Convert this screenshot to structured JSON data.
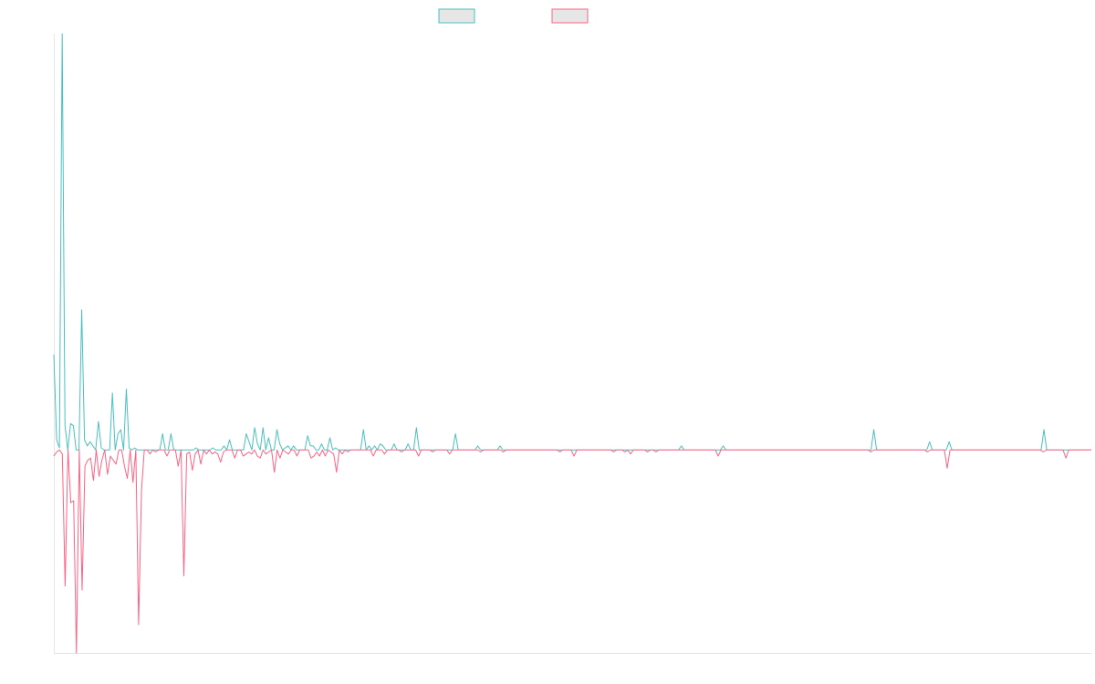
{
  "chart_data": {
    "type": "line",
    "title": "",
    "xlabel": "",
    "ylabel": "",
    "grid": false,
    "legend": {
      "placement": "top-center",
      "show_labels": false
    },
    "colors": {
      "series_a": "#4bc0c0",
      "series_b": "#ff6384",
      "axis": "#e6e6e6",
      "legend_fill": "#e6e6e6"
    },
    "ylim": [
      -100,
      205
    ],
    "series": [
      {
        "color": "#4bc0c0",
        "values": [
          47,
          5,
          1,
          205,
          12,
          0,
          13,
          12,
          0,
          0,
          69,
          5,
          2,
          4,
          2,
          0,
          14,
          1,
          0,
          0,
          0,
          28,
          0,
          8,
          10,
          0,
          30,
          1,
          0,
          1,
          0,
          0,
          0,
          0,
          0,
          0,
          0,
          0,
          0,
          8,
          0,
          0,
          8,
          0,
          0,
          0,
          0,
          0,
          0,
          0,
          0,
          1,
          0,
          0,
          0,
          0,
          0,
          1,
          0,
          0,
          0,
          2,
          0,
          5,
          0,
          0,
          0,
          0,
          0,
          8,
          4,
          0,
          11,
          3,
          0,
          11,
          0,
          6,
          0,
          0,
          10,
          3,
          0,
          1,
          2,
          0,
          2,
          0,
          0,
          0,
          0,
          7,
          2,
          2,
          0,
          0,
          3,
          0,
          0,
          6,
          0,
          1,
          0,
          0,
          0,
          0,
          0,
          0,
          0,
          0,
          0,
          10,
          0,
          2,
          0,
          2,
          0,
          3,
          2,
          0,
          0,
          0,
          3,
          0,
          0,
          0,
          0,
          3,
          0,
          0,
          11,
          0,
          0,
          0,
          0,
          0,
          0,
          0,
          0,
          0,
          0,
          0,
          0,
          0,
          8,
          0,
          0,
          0,
          0,
          0,
          0,
          0,
          2,
          0,
          0,
          0,
          0,
          0,
          0,
          0,
          2,
          0,
          0,
          0,
          0,
          0,
          0,
          0,
          0,
          0,
          0,
          0,
          0,
          0,
          0,
          0,
          0,
          0,
          0,
          0,
          0,
          0,
          0,
          0,
          0,
          0,
          0,
          0,
          0,
          0,
          0,
          0,
          0,
          0,
          0,
          0,
          0,
          0,
          0,
          0,
          0,
          0,
          0,
          0,
          0,
          0,
          0,
          0,
          0,
          0,
          0,
          0,
          0,
          0,
          0,
          0,
          0,
          0,
          0,
          0,
          0,
          0,
          0,
          0,
          0,
          2,
          0,
          0,
          0,
          0,
          0,
          0,
          0,
          0,
          0,
          0,
          0,
          0,
          0,
          0,
          2,
          0,
          0,
          0,
          0,
          0,
          0,
          0,
          0,
          0,
          0,
          0,
          0,
          0,
          0,
          0,
          0,
          0,
          0,
          0,
          0,
          0,
          0,
          0,
          0,
          0,
          0,
          0,
          0,
          0,
          0,
          0,
          0,
          0,
          0,
          0,
          0,
          0,
          0,
          0,
          0,
          0,
          0,
          0,
          0,
          0,
          0,
          0,
          0,
          0,
          0,
          0,
          0,
          0,
          10,
          0,
          0,
          0,
          0,
          0,
          0,
          0,
          0,
          0,
          0,
          0,
          0,
          0,
          0,
          0,
          0,
          0,
          0,
          0,
          4,
          0,
          0,
          0,
          0,
          0,
          0,
          4,
          0,
          0,
          0,
          0,
          0,
          0,
          0,
          0,
          0,
          0,
          0,
          0,
          0,
          0,
          0,
          0,
          0,
          0,
          0,
          0,
          0,
          0,
          0,
          0,
          0,
          0,
          0,
          0,
          0,
          0,
          0,
          0,
          0,
          10,
          0,
          0,
          0,
          0,
          0,
          0,
          0,
          0,
          0,
          0,
          0,
          0,
          0,
          0,
          0,
          0,
          0
        ]
      },
      {
        "color": "#ff6384",
        "values": [
          -3,
          -1,
          0,
          -2,
          -67,
          0,
          -26,
          -25,
          -100,
          0,
          -69,
          -8,
          -5,
          -4,
          -15,
          0,
          -13,
          -5,
          0,
          -12,
          -3,
          -5,
          -7,
          0,
          0,
          -8,
          -14,
          0,
          -16,
          0,
          -86,
          -20,
          0,
          0,
          -2,
          0,
          -1,
          0,
          0,
          0,
          -3,
          0,
          0,
          0,
          -8,
          0,
          -62,
          -2,
          -1,
          -10,
          -2,
          0,
          -7,
          0,
          -2,
          0,
          -2,
          -1,
          -2,
          -6,
          -1,
          0,
          0,
          0,
          -4,
          0,
          0,
          -3,
          -2,
          -1,
          -2,
          0,
          -3,
          -4,
          0,
          -2,
          -1,
          0,
          -11,
          0,
          -4,
          0,
          -1,
          -2,
          0,
          0,
          -3,
          0,
          0,
          0,
          0,
          -4,
          -3,
          -1,
          -3,
          0,
          -3,
          0,
          -1,
          -2,
          -11,
          0,
          -2,
          0,
          -1,
          0,
          0,
          0,
          0,
          0,
          0,
          0,
          0,
          -3,
          0,
          0,
          0,
          -2,
          0,
          0,
          0,
          0,
          0,
          -1,
          0,
          0,
          0,
          0,
          0,
          -3,
          0,
          0,
          0,
          0,
          -1,
          0,
          0,
          0,
          0,
          0,
          -2,
          0,
          0,
          0,
          0,
          0,
          0,
          0,
          0,
          0,
          0,
          -1,
          0,
          0,
          0,
          0,
          0,
          0,
          0,
          -1,
          0,
          0,
          0,
          0,
          0,
          0,
          0,
          0,
          0,
          0,
          0,
          0,
          0,
          0,
          0,
          0,
          0,
          0,
          0,
          -1,
          0,
          0,
          0,
          0,
          -3,
          0,
          0,
          0,
          0,
          0,
          0,
          0,
          0,
          0,
          0,
          0,
          0,
          0,
          -1,
          0,
          0,
          0,
          -1,
          0,
          -2,
          0,
          0,
          0,
          0,
          0,
          -1,
          0,
          0,
          -1,
          0,
          0,
          0,
          0,
          0,
          0,
          0,
          0,
          0,
          0,
          0,
          0,
          0,
          0,
          0,
          0,
          0,
          0,
          0,
          0,
          0,
          -3,
          0,
          0,
          0,
          0,
          0,
          0,
          0,
          0,
          0,
          0,
          0,
          0,
          0,
          0,
          0,
          0,
          0,
          0,
          0,
          0,
          0,
          0,
          0,
          0,
          0,
          0,
          0,
          0,
          0,
          0,
          0,
          0,
          0,
          0,
          0,
          0,
          0,
          0,
          0,
          0,
          0,
          0,
          0,
          0,
          0,
          0,
          0,
          0,
          0,
          0,
          0,
          0,
          0,
          -1,
          0,
          0,
          0,
          0,
          0,
          0,
          0,
          0,
          0,
          0,
          0,
          0,
          0,
          0,
          0,
          0,
          0,
          0,
          0,
          -1,
          0,
          0,
          0,
          0,
          0,
          0,
          -9,
          0,
          0,
          0,
          0,
          0,
          0,
          0,
          0,
          0,
          0,
          0,
          0,
          0,
          0,
          0,
          0,
          0,
          0,
          0,
          0,
          0,
          0,
          0,
          0,
          0,
          0,
          0,
          0,
          0,
          0,
          0,
          0,
          0,
          -1,
          0,
          0,
          0,
          0,
          0,
          0,
          0,
          -4,
          0,
          0,
          0,
          0,
          0,
          0,
          0,
          0,
          0
        ]
      }
    ]
  }
}
